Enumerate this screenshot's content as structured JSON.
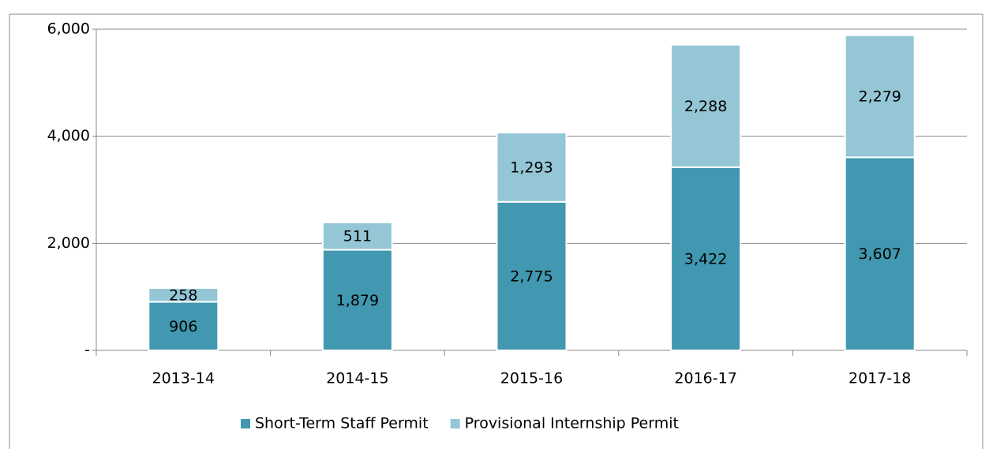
{
  "chart_data": {
    "type": "stacked_bar",
    "categories": [
      "2013-14",
      "2014-15",
      "2015-16",
      "2016-17",
      "2017-18"
    ],
    "series": [
      {
        "name": "Short-Term Staff Permit",
        "color": "#4198b0",
        "values": [
          906,
          1879,
          2775,
          3422,
          3607
        ],
        "value_labels": [
          "906",
          "1,879",
          "2,775",
          "3,422",
          "3,607"
        ]
      },
      {
        "name": "Provisional Internship Permit",
        "color": "#94c6d6",
        "values": [
          258,
          511,
          1293,
          2288,
          2279
        ],
        "value_labels": [
          "258",
          "511",
          "1,293",
          "2,288",
          "2,279"
        ]
      }
    ],
    "ylim": [
      0,
      6000
    ],
    "yticks": [
      {
        "value": 0,
        "label": "-"
      },
      {
        "value": 2000,
        "label": "2,000"
      },
      {
        "value": 4000,
        "label": "4,000"
      },
      {
        "value": 6000,
        "label": "6,000"
      }
    ],
    "grid": true,
    "legend": "bottom"
  }
}
